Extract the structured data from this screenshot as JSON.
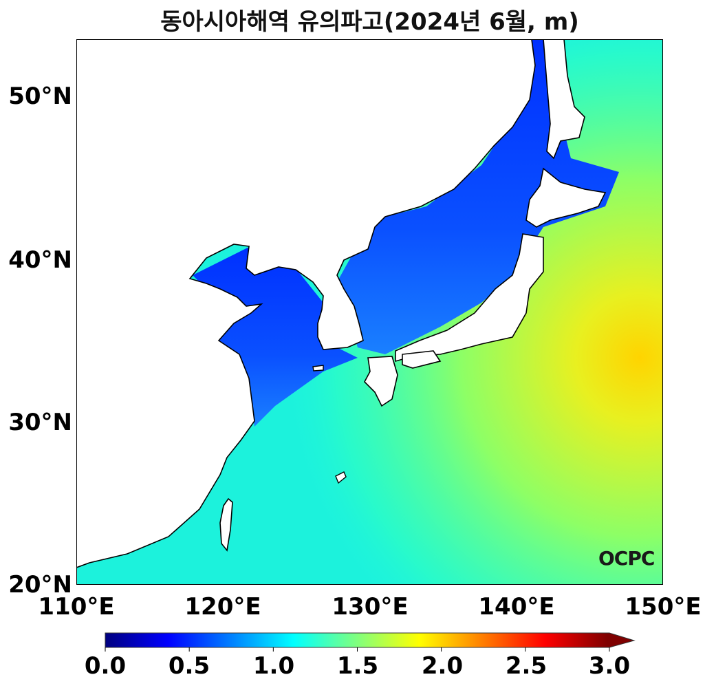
{
  "title": "동아시아해역 유의파고(2024년 6월, m)",
  "map": {
    "variable": "significant wave height",
    "lon_range": [
      110,
      150
    ],
    "lat_range": [
      20,
      53.5
    ],
    "lat_ticks": [
      "50°N",
      "40°N",
      "30°N",
      "20°N"
    ],
    "lon_ticks": [
      "110°E",
      "120°E",
      "130°E",
      "140°E",
      "150°E"
    ],
    "land_color": "#ffffff",
    "coastline_color": "#000000"
  },
  "colorbar": {
    "min": 0.0,
    "max": 3.0,
    "extend": "max",
    "colormap": "jet",
    "colors": [
      "#00007f",
      "#0000ff",
      "#007fff",
      "#00ffff",
      "#7fff7f",
      "#ffff00",
      "#ff7f00",
      "#ff0000",
      "#7f0000"
    ],
    "ticks": [
      "0.0",
      "0.5",
      "1.0",
      "1.5",
      "2.0",
      "2.5",
      "3.0"
    ]
  },
  "logo": "OCPC"
}
